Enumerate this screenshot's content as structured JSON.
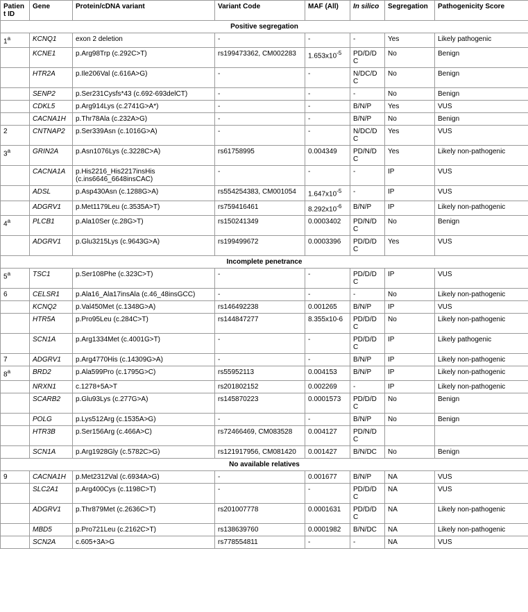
{
  "headers": {
    "patientId": "Patient ID",
    "gene": "Gene",
    "variant": "Protein/cDNA variant",
    "code": "Variant Code",
    "maf": "MAF (All)",
    "insilico": "In silico",
    "segregation": "Segregation",
    "pathogenicity": "Pathogenicity Score"
  },
  "sections": [
    {
      "title": "Positive segregation",
      "rows": [
        {
          "pid": "1",
          "pidSup": "a",
          "gene": "KCNQ1",
          "variant": "exon 2 deletion",
          "code": "-",
          "maf": "-",
          "sil": "-",
          "seg": "Yes",
          "path": "Likely pathogenic"
        },
        {
          "pid": "",
          "gene": "KCNE1",
          "variant": "p.Arg98Trp (c.292C>T)",
          "code": "rs199473362, CM002283",
          "maf": "1.653x10",
          "mafSup": "-5",
          "sil": "PD/D/DC",
          "seg": "No",
          "path": "Benign"
        },
        {
          "pid": "",
          "gene": "HTR2A",
          "variant": "p.Ile206Val (c.616A>G)",
          "code": "-",
          "maf": "-",
          "sil": "N/DC/DC",
          "seg": "No",
          "path": "Benign"
        },
        {
          "pid": "",
          "gene": "SENP2",
          "variant": "p.Ser231Cysfs*43 (c.692-693delCT)",
          "code": "-",
          "maf": "-",
          "sil": "-",
          "seg": "No",
          "path": "Benign"
        },
        {
          "pid": "",
          "gene": "CDKL5",
          "variant": "p.Arg914Lys (c.2741G>A*)",
          "code": "-",
          "maf": "-",
          "sil": "B/N/P",
          "seg": "Yes",
          "path": "VUS"
        },
        {
          "pid": "",
          "gene": "CACNA1H",
          "variant": "p.Thr78Ala (c.232A>G)",
          "code": "-",
          "maf": "-",
          "sil": "B/N/P",
          "seg": "No",
          "path": "Benign"
        },
        {
          "pid": "2",
          "gene": "CNTNAP2",
          "variant": "p.Ser339Asn (c.1016G>A)",
          "code": "-",
          "maf": "-",
          "sil": "N/DC/DC",
          "seg": "Yes",
          "path": "VUS"
        },
        {
          "pid": "3",
          "pidSup": "a",
          "gene": "GRIN2A",
          "variant": "p.Asn1076Lys (c.3228C>A)",
          "code": "rs61758995",
          "maf": "0.004349",
          "sil": "PD/N/DC",
          "seg": "Yes",
          "path": "Likely non-pathogenic"
        },
        {
          "pid": "",
          "gene": "CACNA1A",
          "variant": "p.His2216_His2217insHis (c.ins6646_6648insCAC)",
          "code": "-",
          "maf": "-",
          "sil": "-",
          "seg": "IP",
          "path": "VUS"
        },
        {
          "pid": "",
          "gene": "ADSL",
          "variant": "p.Asp430Asn (c.1288G>A)",
          "code": "rs554254383, CM001054",
          "maf": "1.647x10",
          "mafSup": "-5",
          "sil": "-",
          "seg": "IP",
          "path": "VUS"
        },
        {
          "pid": "",
          "gene": "ADGRV1",
          "variant": "p.Met1179Leu (c.3535A>T)",
          "code": "rs759416461",
          "maf": "8.292x10",
          "mafSup": "-6",
          "sil": "B/N/P",
          "seg": "IP",
          "path": "Likely non-pathogenic"
        },
        {
          "pid": "4",
          "pidSup": "a",
          "gene": "PLCB1",
          "variant": "p.Ala10Ser (c.28G>T)",
          "code": "rs150241349",
          "maf": "0.0003402",
          "sil": "PD/N/DC",
          "seg": "No",
          "path": "Benign"
        },
        {
          "pid": "",
          "gene": "ADGRV1",
          "variant": "p.Glu3215Lys (c.9643G>A)",
          "code": "rs199499672",
          "maf": "0.0003396",
          "sil": "PD/D/DC",
          "seg": "Yes",
          "path": "VUS"
        }
      ]
    },
    {
      "title": "Incomplete penetrance",
      "rows": [
        {
          "pid": "5",
          "pidSup": "a",
          "gene": "TSC1",
          "variant": "p.Ser108Phe (c.323C>T)",
          "code": "-",
          "maf": "-",
          "sil": "PD/D/DC",
          "seg": "IP",
          "path": "VUS"
        },
        {
          "pid": "6",
          "gene": "CELSR1",
          "variant": "p.Ala16_Ala17insAla (c.46_48insGCC)",
          "code": "-",
          "maf": "-",
          "sil": "-",
          "seg": "No",
          "path": "Likely non-pathogenic"
        },
        {
          "pid": "",
          "gene": "KCNQ2",
          "variant": "p.Val450Met (c.1348G>A)",
          "code": "rs146492238",
          "maf": "0.001265",
          "sil": "B/N/P",
          "seg": "IP",
          "path": "VUS"
        },
        {
          "pid": "",
          "gene": "HTR5A",
          "variant": "p.Pro95Leu (c.284C>T)",
          "code": "rs144847277",
          "maf": "8.355x10-6",
          "sil": "PD/D/DC",
          "seg": "No",
          "path": "Likely non-pathogenic"
        },
        {
          "pid": "",
          "gene": "SCN1A",
          "variant": "p.Arg1334Met (c.4001G>T)",
          "code": "-",
          "maf": "-",
          "sil": "PD/D/DC",
          "seg": "IP",
          "path": "Likely pathogenic"
        },
        {
          "pid": "7",
          "gene": "ADGRV1",
          "variant": "p.Arg4770His (c.14309G>A)",
          "code": "-",
          "maf": "-",
          "sil": "B/N/P",
          "seg": "IP",
          "path": "Likely non-pathogenic"
        },
        {
          "pid": "8",
          "pidSup": "a",
          "gene": "BRD2",
          "variant": "p.Ala599Pro (c.1795G>C)",
          "code": "rs55952113",
          "maf": "0.004153",
          "sil": "B/N/P",
          "seg": "IP",
          "path": "Likely non-pathogenic"
        },
        {
          "pid": "",
          "gene": "NRXN1",
          "variant": "c.1278+5A>T",
          "code": "rs201802152",
          "maf": "0.002269",
          "sil": "-",
          "seg": "IP",
          "path": "Likely non-pathogenic"
        },
        {
          "pid": "",
          "gene": "SCARB2",
          "variant": "p.Glu93Lys (c.277G>A)",
          "code": "rs145870223",
          "maf": "0.0001573",
          "sil": "PD/D/DC",
          "seg": "No",
          "path": "Benign"
        },
        {
          "pid": "",
          "gene": "POLG",
          "variant": "p.Lys512Arg (c.1535A>G)",
          "code": "-",
          "maf": "-",
          "sil": "B/N/P",
          "seg": "No",
          "path": "Benign"
        },
        {
          "pid": "",
          "gene": "HTR3B",
          "variant": "p.Ser156Arg (c.466A>C)",
          "code": "rs72466469, CM083528",
          "maf": "0.004127",
          "sil": "PD/N/DC",
          "seg": "",
          "path": ""
        },
        {
          "pid": "",
          "gene": "SCN1A",
          "variant": "p.Arg1928Gly (c.5782C>G)",
          "code": "rs121917956, CM081420",
          "maf": "0.001427",
          "sil": "B/N/DC",
          "seg": "No",
          "path": "Benign"
        }
      ]
    },
    {
      "title": "No available relatives",
      "rows": [
        {
          "pid": "9",
          "gene": "CACNA1H",
          "variant": "p.Met2312Val (c.6934A>G)",
          "code": "-",
          "maf": "0.001677",
          "sil": "B/N/P",
          "seg": "NA",
          "path": "VUS"
        },
        {
          "pid": "",
          "gene": "SLC2A1",
          "variant": "p.Arg400Cys (c.1198C>T)",
          "code": "-",
          "maf": "-",
          "sil": "PD/D/DC",
          "seg": "NA",
          "path": "VUS"
        },
        {
          "pid": "",
          "gene": "ADGRV1",
          "variant": "p.Thr879Met (c.2636C>T)",
          "code": "rs201007778",
          "maf": "0.0001631",
          "sil": "PD/D/DC",
          "seg": "NA",
          "path": "Likely non-pathogenic"
        },
        {
          "pid": "",
          "gene": "MBD5",
          "variant": "p.Pro721Leu (c.2162C>T)",
          "code": "rs138639760",
          "maf": "0.0001982",
          "sil": "B/N/DC",
          "seg": "NA",
          "path": "Likely non-pathogenic"
        },
        {
          "pid": "",
          "gene": "SCN2A",
          "variant": "c.605+3A>G",
          "code": "rs778554811",
          "maf": "-",
          "sil": "-",
          "seg": "NA",
          "path": "VUS"
        }
      ]
    }
  ]
}
